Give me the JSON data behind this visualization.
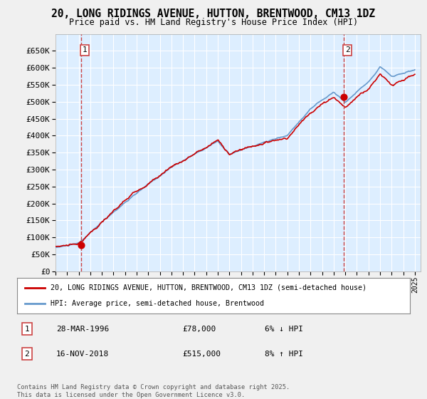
{
  "title": "20, LONG RIDINGS AVENUE, HUTTON, BRENTWOOD, CM13 1DZ",
  "subtitle": "Price paid vs. HM Land Registry's House Price Index (HPI)",
  "legend_line1": "20, LONG RIDINGS AVENUE, HUTTON, BRENTWOOD, CM13 1DZ (semi-detached house)",
  "legend_line2": "HPI: Average price, semi-detached house, Brentwood",
  "annotation1_label": "1",
  "annotation1_date": "28-MAR-1996",
  "annotation1_price": "£78,000",
  "annotation1_hpi": "6% ↓ HPI",
  "annotation2_label": "2",
  "annotation2_date": "16-NOV-2018",
  "annotation2_price": "£515,000",
  "annotation2_hpi": "8% ↑ HPI",
  "footnote": "Contains HM Land Registry data © Crown copyright and database right 2025.\nThis data is licensed under the Open Government Licence v3.0.",
  "red_color": "#cc0000",
  "blue_color": "#6699cc",
  "background_color": "#ddeeff",
  "grid_color": "#ffffff",
  "annotation_vline_color": "#cc4444",
  "ylim": [
    0,
    700000
  ],
  "yticks": [
    0,
    50000,
    100000,
    150000,
    200000,
    250000,
    300000,
    350000,
    400000,
    450000,
    500000,
    550000,
    600000,
    650000
  ],
  "start_year": 1994,
  "end_year": 2025,
  "purchase1_year": 1996.23,
  "purchase1_price": 78000,
  "purchase2_year": 2018.88,
  "purchase2_price": 515000
}
